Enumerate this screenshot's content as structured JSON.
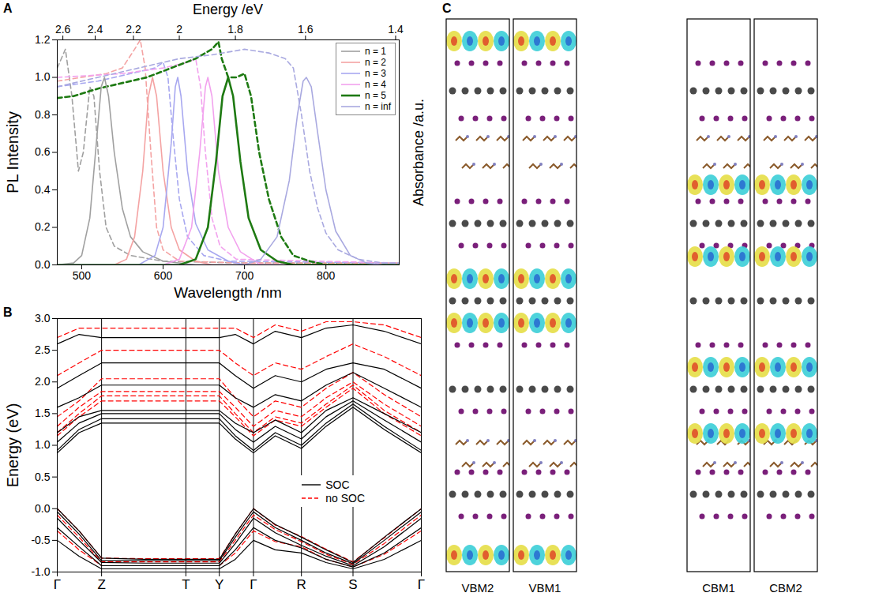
{
  "chart_data": [
    {
      "label": "A",
      "type": "line",
      "x_label": "Wavelength /nm",
      "x2_label": "Energy /eV",
      "y_label": "PL Intensity",
      "y2_label": "Absorbance /a.u.",
      "xlim": [
        470,
        890
      ],
      "xticks": [
        500,
        600,
        700,
        800
      ],
      "x2ticks": [
        {
          "value": 476.9,
          "label": "2.6"
        },
        {
          "value": 516.6,
          "label": "2.4"
        },
        {
          "value": 563.6,
          "label": "2.2"
        },
        {
          "value": 619.9,
          "label": "2"
        },
        {
          "value": 688.8,
          "label": "1.8"
        },
        {
          "value": 774.9,
          "label": "1.6"
        },
        {
          "value": 885.6,
          "label": "1.4"
        }
      ],
      "ylim": [
        0,
        1.2
      ],
      "yticks": [
        {
          "value": 0,
          "label": "0.0"
        },
        {
          "value": 0.2,
          "label": "0.2"
        },
        {
          "value": 0.4,
          "label": "0.4"
        },
        {
          "value": 0.6,
          "label": "0.6"
        },
        {
          "value": 0.8,
          "label": "0.8"
        },
        {
          "value": 1,
          "label": "1.0"
        },
        {
          "value": 1.2,
          "label": "1.2"
        }
      ],
      "legend": "top-right",
      "series": [
        {
          "name": "n = 1",
          "color": "#a0a0a0",
          "pl": {
            "line_style": "solid",
            "x": [
              470,
              490,
              500,
              510,
              518,
              524,
              528,
              533,
              540,
              550,
              560,
              575,
              600,
              640,
              890
            ],
            "values": [
              0,
              0.01,
              0.05,
              0.25,
              0.65,
              0.95,
              1.0,
              0.9,
              0.6,
              0.3,
              0.15,
              0.07,
              0.02,
              0,
              0
            ]
          },
          "absorbance": {
            "line_style": "dashed",
            "x": [
              470,
              480,
              488,
              496,
              502,
              510,
              515,
              522,
              530,
              540,
              560,
              600,
              700,
              890
            ],
            "values": [
              1.05,
              1.15,
              0.9,
              0.5,
              0.6,
              0.95,
              0.9,
              0.5,
              0.2,
              0.1,
              0.05,
              0.02,
              0.01,
              0.01
            ]
          }
        },
        {
          "name": "n = 2",
          "color": "#f4a3a3",
          "pl": {
            "line_style": "solid",
            "x": [
              470,
              540,
              555,
              565,
              575,
              582,
              587,
              592,
              600,
              610,
              620,
              640,
              660,
              890
            ],
            "values": [
              0,
              0,
              0.03,
              0.15,
              0.5,
              0.9,
              1.0,
              0.9,
              0.5,
              0.2,
              0.08,
              0.02,
              0,
              0
            ]
          },
          "absorbance": {
            "line_style": "dashed",
            "x": [
              470,
              500,
              530,
              550,
              565,
              572,
              578,
              585,
              592,
              600,
              620,
              700,
              890
            ],
            "values": [
              0.98,
              1.0,
              1.02,
              1.05,
              1.15,
              1.2,
              1.05,
              0.6,
              0.2,
              0.08,
              0.02,
              0.01,
              0.01
            ]
          }
        },
        {
          "name": "n = 3",
          "color": "#a8a8f0",
          "pl": {
            "line_style": "solid",
            "x": [
              470,
              570,
              590,
              600,
              610,
              615,
              618,
              622,
              630,
              640,
              655,
              680,
              700,
              890
            ],
            "values": [
              0,
              0,
              0.05,
              0.2,
              0.65,
              0.95,
              1.0,
              0.9,
              0.5,
              0.22,
              0.08,
              0.02,
              0,
              0
            ]
          },
          "absorbance": {
            "line_style": "dashed",
            "x": [
              470,
              520,
              560,
              590,
              600,
              606,
              612,
              620,
              630,
              650,
              680,
              890
            ],
            "values": [
              0.95,
              0.98,
              1.02,
              1.05,
              1.08,
              1.0,
              0.7,
              0.35,
              0.15,
              0.05,
              0.02,
              0.01
            ]
          }
        },
        {
          "name": "n = 4",
          "color": "#f2a2ee",
          "pl": {
            "line_style": "solid",
            "x": [
              470,
              600,
              620,
              635,
              645,
              652,
              655,
              660,
              668,
              680,
              695,
              720,
              890
            ],
            "values": [
              0,
              0,
              0.03,
              0.2,
              0.6,
              0.95,
              1.0,
              0.9,
              0.5,
              0.2,
              0.07,
              0,
              0
            ]
          },
          "absorbance": {
            "line_style": "dashed",
            "x": [
              470,
              550,
              600,
              630,
              640,
              646,
              652,
              660,
              670,
              690,
              890
            ],
            "values": [
              1.0,
              1.02,
              1.05,
              1.08,
              1.1,
              0.95,
              0.6,
              0.25,
              0.1,
              0.03,
              0.01
            ]
          }
        },
        {
          "name": "n = 5",
          "color": "#1e7a12",
          "pl": {
            "line_style": "solid",
            "x": [
              470,
              620,
              640,
              655,
              665,
              673,
              680,
              686,
              695,
              705,
              720,
              740,
              760,
              890
            ],
            "values": [
              0,
              0,
              0.03,
              0.2,
              0.55,
              0.9,
              1.0,
              0.9,
              0.55,
              0.25,
              0.08,
              0.02,
              0,
              0
            ]
          },
          "absorbance": {
            "line_style": "dashed",
            "x": [
              470,
              490,
              520,
              550,
              580,
              610,
              640,
              660,
              668,
              672,
              680,
              690,
              700,
              708,
              718,
              730,
              745,
              760,
              780,
              800,
              890
            ],
            "values": [
              0.89,
              0.9,
              0.94,
              0.97,
              1.0,
              1.05,
              1.1,
              1.15,
              1.19,
              1.1,
              1.0,
              1.0,
              1.02,
              0.9,
              0.6,
              0.35,
              0.15,
              0.05,
              0.02,
              0,
              0
            ]
          }
        },
        {
          "name": "n = inf",
          "color": "#a9a9e0",
          "pl": {
            "line_style": "solid",
            "x": [
              470,
              700,
              720,
              740,
              755,
              765,
              772,
              776,
              782,
              790,
              800,
              812,
              830,
              850,
              870,
              890
            ],
            "values": [
              0,
              0,
              0.03,
              0.15,
              0.45,
              0.8,
              0.98,
              1.0,
              0.95,
              0.7,
              0.4,
              0.18,
              0.05,
              0.01,
              0,
              0
            ]
          },
          "absorbance": {
            "line_style": "dashed",
            "x": [
              470,
              520,
              570,
              620,
              660,
              700,
              730,
              750,
              760,
              770,
              780,
              790,
              800,
              815,
              840,
              870,
              890
            ],
            "values": [
              0.95,
              1.0,
              1.05,
              1.1,
              1.12,
              1.15,
              1.13,
              1.1,
              1.05,
              0.8,
              0.5,
              0.3,
              0.17,
              0.08,
              0.03,
              0.01,
              0.01
            ]
          }
        }
      ]
    },
    {
      "label": "B",
      "type": "line",
      "y_label": "Energy (eV)",
      "xlim": [
        0,
        5.01
      ],
      "xticks": [
        {
          "value": 0,
          "label": "Γ"
        },
        {
          "value": 0.61,
          "label": "Z"
        },
        {
          "value": 1.77,
          "label": "T"
        },
        {
          "value": 2.23,
          "label": "Y"
        },
        {
          "value": 2.7,
          "label": "Γ"
        },
        {
          "value": 3.36,
          "label": "R"
        },
        {
          "value": 4.07,
          "label": "S"
        },
        {
          "value": 5.01,
          "label": "Γ"
        }
      ],
      "ylim": [
        -1,
        3
      ],
      "yticks": [
        {
          "value": -1,
          "label": "-1.0"
        },
        {
          "value": -0.5,
          "label": "-0.5"
        },
        {
          "value": 0,
          "label": "0.0"
        },
        {
          "value": 0.5,
          "label": "0.5"
        },
        {
          "value": 1,
          "label": "1.0"
        },
        {
          "value": 1.5,
          "label": "1.5"
        },
        {
          "value": 2,
          "label": "2.0"
        },
        {
          "value": 2.5,
          "label": "2.5"
        },
        {
          "value": 3,
          "label": "3.0"
        }
      ],
      "grid": "x",
      "legend": "center-right",
      "k": [
        0,
        0.3,
        0.61,
        1.2,
        1.77,
        2.0,
        2.23,
        2.45,
        2.7,
        3.0,
        3.36,
        3.7,
        4.07,
        4.5,
        5.01
      ],
      "series": [
        {
          "name": "SOC",
          "color": "#000000",
          "line_style": "solid",
          "bands": [
            [
              0.0,
              -0.35,
              -0.78,
              -0.8,
              -0.8,
              -0.8,
              -0.8,
              -0.4,
              0.0,
              -0.25,
              -0.45,
              -0.65,
              -0.85,
              -0.45,
              0.0
            ],
            [
              -0.05,
              -0.4,
              -0.82,
              -0.82,
              -0.82,
              -0.82,
              -0.82,
              -0.45,
              -0.05,
              -0.3,
              -0.5,
              -0.7,
              -0.87,
              -0.5,
              -0.05
            ],
            [
              -0.15,
              -0.5,
              -0.85,
              -0.86,
              -0.86,
              -0.86,
              -0.86,
              -0.55,
              -0.15,
              -0.38,
              -0.58,
              -0.75,
              -0.9,
              -0.6,
              -0.15
            ],
            [
              -0.3,
              -0.6,
              -0.9,
              -0.9,
              -0.9,
              -0.9,
              -0.9,
              -0.65,
              -0.3,
              -0.5,
              -0.62,
              -0.8,
              -0.92,
              -0.7,
              -0.3
            ],
            [
              -0.5,
              -0.75,
              -0.95,
              -0.95,
              -0.95,
              -0.95,
              -0.95,
              -0.8,
              -0.5,
              -0.65,
              -0.7,
              -0.85,
              -0.95,
              -0.8,
              -0.5
            ],
            [
              0.88,
              1.2,
              1.35,
              1.35,
              1.35,
              1.35,
              1.35,
              1.1,
              0.88,
              1.15,
              0.95,
              1.3,
              1.6,
              1.25,
              0.88
            ],
            [
              0.92,
              1.25,
              1.42,
              1.42,
              1.42,
              1.42,
              1.42,
              1.15,
              0.92,
              1.2,
              1.0,
              1.35,
              1.65,
              1.3,
              0.92
            ],
            [
              1.05,
              1.35,
              1.5,
              1.5,
              1.5,
              1.5,
              1.5,
              1.25,
              1.05,
              1.3,
              1.1,
              1.45,
              1.7,
              1.4,
              1.05
            ],
            [
              1.2,
              1.45,
              1.55,
              1.55,
              1.55,
              1.55,
              1.55,
              1.35,
              1.2,
              1.4,
              1.2,
              1.55,
              1.75,
              1.5,
              1.2
            ],
            [
              1.6,
              1.75,
              1.95,
              1.95,
              1.95,
              1.95,
              1.95,
              1.75,
              1.6,
              1.8,
              1.7,
              1.95,
              2.15,
              1.9,
              1.6
            ],
            [
              1.9,
              2.1,
              2.3,
              2.3,
              2.3,
              2.3,
              2.3,
              2.1,
              1.9,
              2.1,
              2.0,
              2.2,
              2.3,
              2.2,
              1.9
            ],
            [
              2.6,
              2.75,
              2.7,
              2.7,
              2.7,
              2.7,
              2.7,
              2.75,
              2.6,
              2.8,
              2.7,
              2.85,
              2.9,
              2.8,
              2.6
            ]
          ]
        },
        {
          "name": "no SOC",
          "color": "#ff0000",
          "line_style": "dashed",
          "bands": [
            [
              0.0,
              -0.35,
              -0.78,
              -0.79,
              -0.79,
              -0.79,
              -0.79,
              -0.4,
              0.0,
              -0.26,
              -0.44,
              -0.64,
              -0.84,
              -0.46,
              0.0
            ],
            [
              -0.1,
              -0.45,
              -0.84,
              -0.84,
              -0.84,
              -0.84,
              -0.84,
              -0.5,
              -0.1,
              -0.33,
              -0.52,
              -0.72,
              -0.88,
              -0.55,
              -0.1
            ],
            [
              -0.35,
              -0.65,
              -0.9,
              -0.9,
              -0.9,
              -0.9,
              -0.9,
              -0.7,
              -0.35,
              -0.52,
              -0.6,
              -0.8,
              -0.92,
              -0.72,
              -0.35
            ],
            [
              1.15,
              1.45,
              1.7,
              1.7,
              1.7,
              1.7,
              1.7,
              1.45,
              1.15,
              1.4,
              1.3,
              1.6,
              1.9,
              1.5,
              1.15
            ],
            [
              1.2,
              1.5,
              1.78,
              1.78,
              1.78,
              1.78,
              1.78,
              1.5,
              1.2,
              1.45,
              1.35,
              1.65,
              1.95,
              1.55,
              1.2
            ],
            [
              1.3,
              1.6,
              1.85,
              1.85,
              1.85,
              1.85,
              1.85,
              1.6,
              1.3,
              1.55,
              1.45,
              1.75,
              2.0,
              1.65,
              1.3
            ],
            [
              1.45,
              1.7,
              2.05,
              2.05,
              2.05,
              2.05,
              2.05,
              1.75,
              1.45,
              1.7,
              1.6,
              1.9,
              2.15,
              1.8,
              1.45
            ],
            [
              2.1,
              2.3,
              2.5,
              2.5,
              2.5,
              2.5,
              2.5,
              2.3,
              2.1,
              2.3,
              2.2,
              2.4,
              2.6,
              2.4,
              2.1
            ],
            [
              2.7,
              2.85,
              2.85,
              2.85,
              2.85,
              2.85,
              2.85,
              2.85,
              2.7,
              2.9,
              2.8,
              2.95,
              2.95,
              2.9,
              2.7
            ]
          ]
        }
      ]
    },
    {
      "label": "C",
      "type": "diagram",
      "panels": [
        {
          "label": "VBM2"
        },
        {
          "label": "VBM1"
        },
        {
          "label": "CBM1"
        },
        {
          "label": "CBM2"
        }
      ]
    }
  ]
}
